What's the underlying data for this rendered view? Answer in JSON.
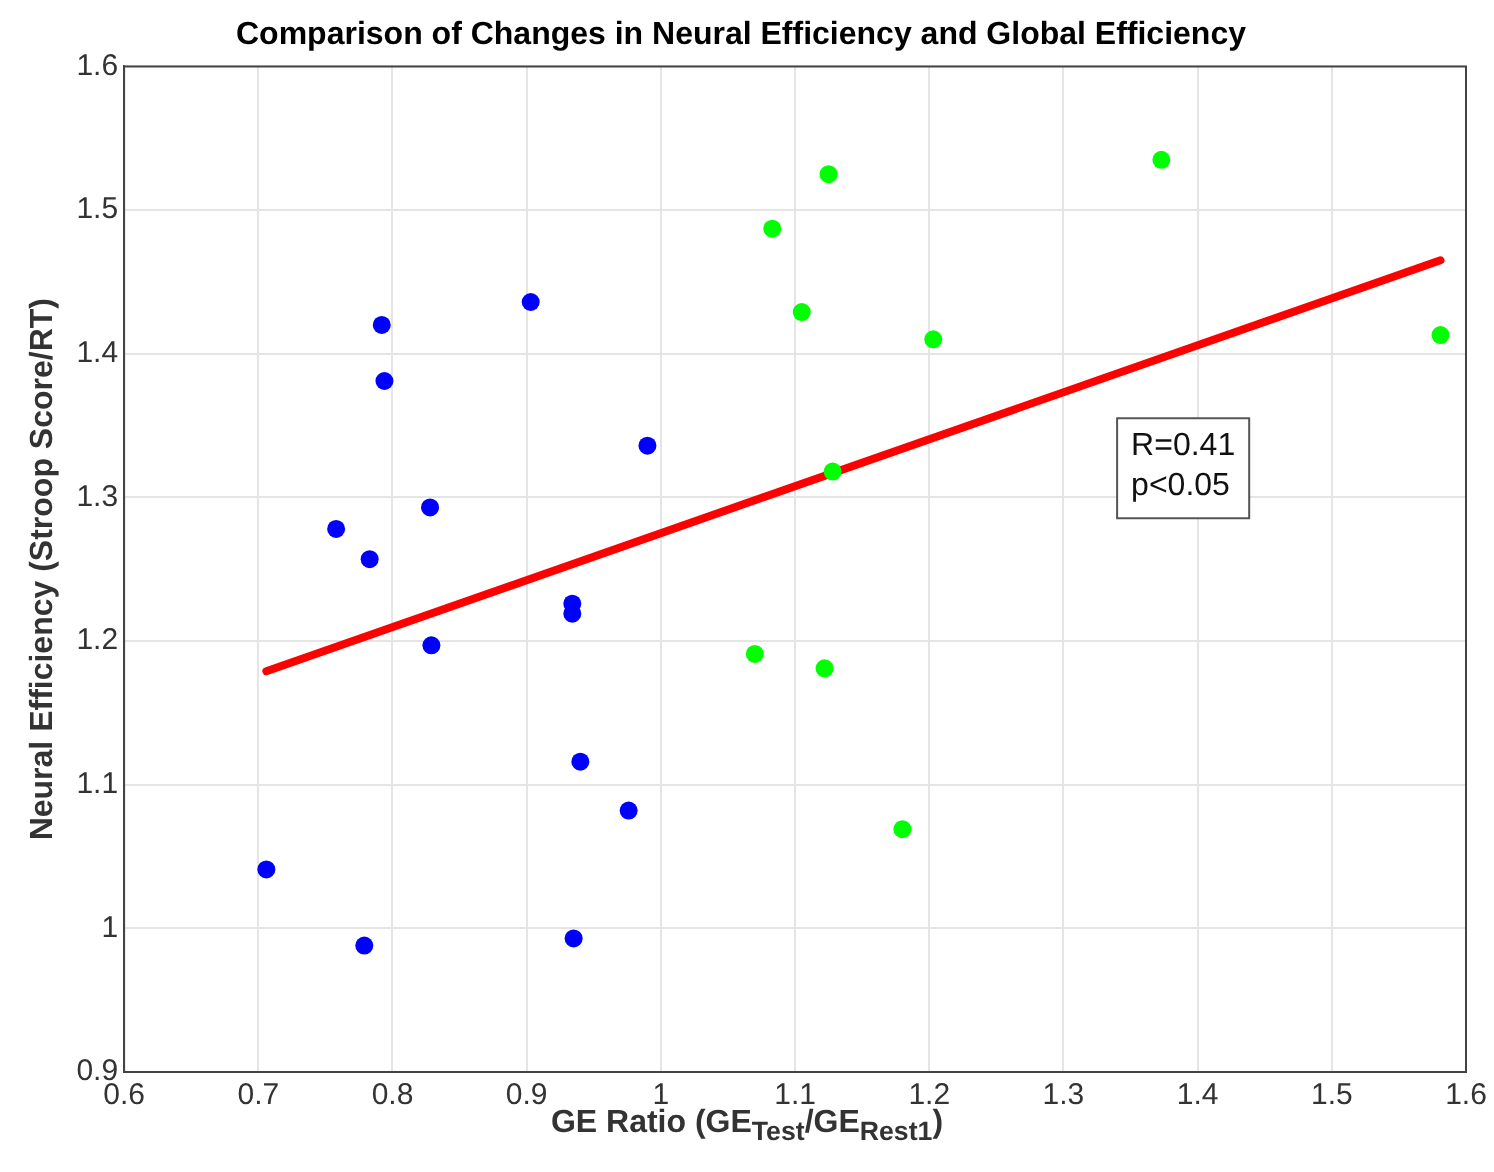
{
  "chart_data": {
    "type": "scatter",
    "title": "Comparison of Changes in Neural Efficiency and Global Efficiency",
    "xlabel": "GE Ratio (GE$_{Test}$/GE$_{Rest1}$)",
    "ylabel": "Neural Efficiency (Stroop Score/RT)",
    "series": [
      {
        "color": "#0000ff",
        "marker": "circle",
        "x": [
          0.706,
          0.758,
          0.783,
          0.779,
          0.792,
          0.794,
          0.828,
          0.829,
          0.903,
          0.934,
          0.934,
          0.94,
          0.935,
          0.976,
          0.99
        ],
        "values": [
          1.041,
          1.278,
          1.257,
          0.988,
          1.42,
          1.381,
          1.293,
          1.197,
          1.436,
          1.226,
          1.219,
          1.116,
          0.993,
          1.082,
          1.336
        ]
      },
      {
        "color": "#00ff00",
        "marker": "circle",
        "x": [
          1.07,
          1.083,
          1.105,
          1.122,
          1.125,
          1.128,
          1.18,
          1.203,
          1.373,
          1.581
        ],
        "values": [
          1.191,
          1.487,
          1.429,
          1.181,
          1.525,
          1.318,
          1.069,
          1.41,
          1.535,
          1.413
        ]
      },
      {
        "type": "line",
        "marker": "none",
        "color": "#ff0000",
        "x": [
          0.706,
          1.581
        ],
        "values": [
          1.179,
          1.465
        ]
      }
    ],
    "annotations": [
      "R=0.41\np<0.05"
    ],
    "xlim": [
      0.6,
      1.6
    ],
    "xticks": [
      0.6,
      0.7,
      0.8,
      0.9,
      1,
      1.1,
      1.2,
      1.3,
      1.4,
      1.5,
      1.6
    ],
    "ylim": [
      0.9,
      1.6
    ],
    "yticks": [
      0.9,
      1,
      1.1,
      1.2,
      1.3,
      1.4,
      1.5,
      1.6
    ],
    "grid": true
  }
}
